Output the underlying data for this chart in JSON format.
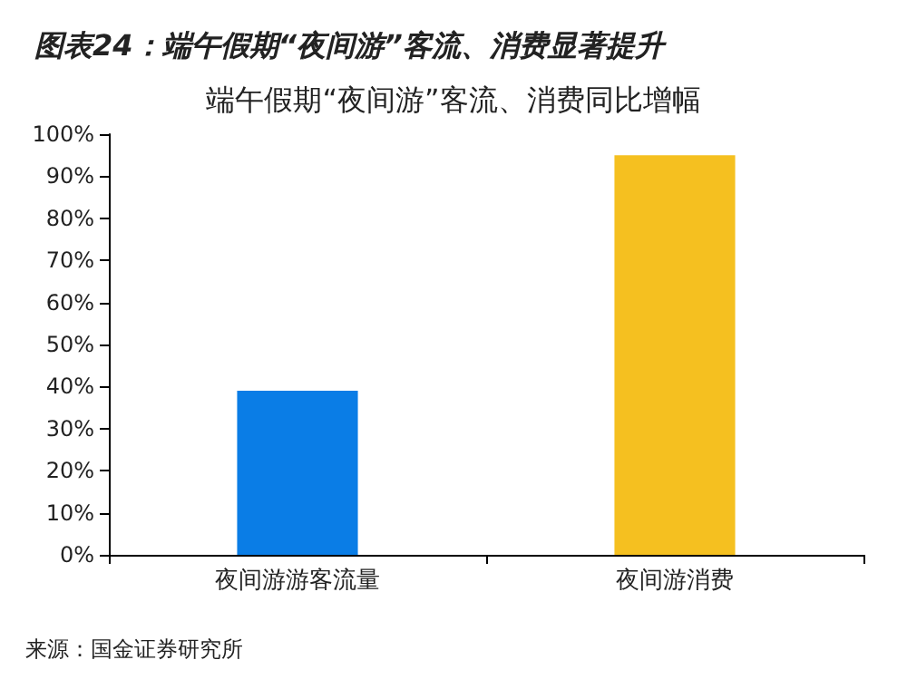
{
  "chart_data": {
    "type": "bar",
    "title": "图表24：端午假期“夜间游”客流、消费显著提升",
    "subtitle": "端午假期“夜间游”客流、消费同比增幅",
    "categories": [
      "夜间游游客流量",
      "夜间游消费"
    ],
    "values": [
      39,
      95
    ],
    "colors": [
      "#0a7de6",
      "#f5c020"
    ],
    "ylim": [
      0,
      100
    ],
    "yticks": [
      {
        "value": 0,
        "label": "0%"
      },
      {
        "value": 10,
        "label": "10%"
      },
      {
        "value": 20,
        "label": "20%"
      },
      {
        "value": 30,
        "label": "30%"
      },
      {
        "value": 40,
        "label": "40%"
      },
      {
        "value": 50,
        "label": "50%"
      },
      {
        "value": 60,
        "label": "60%"
      },
      {
        "value": 70,
        "label": "70%"
      },
      {
        "value": 80,
        "label": "80%"
      },
      {
        "value": 90,
        "label": "90%"
      },
      {
        "value": 100,
        "label": "100%"
      }
    ],
    "annotations": [
      "来源：国金证券研究所"
    ]
  }
}
